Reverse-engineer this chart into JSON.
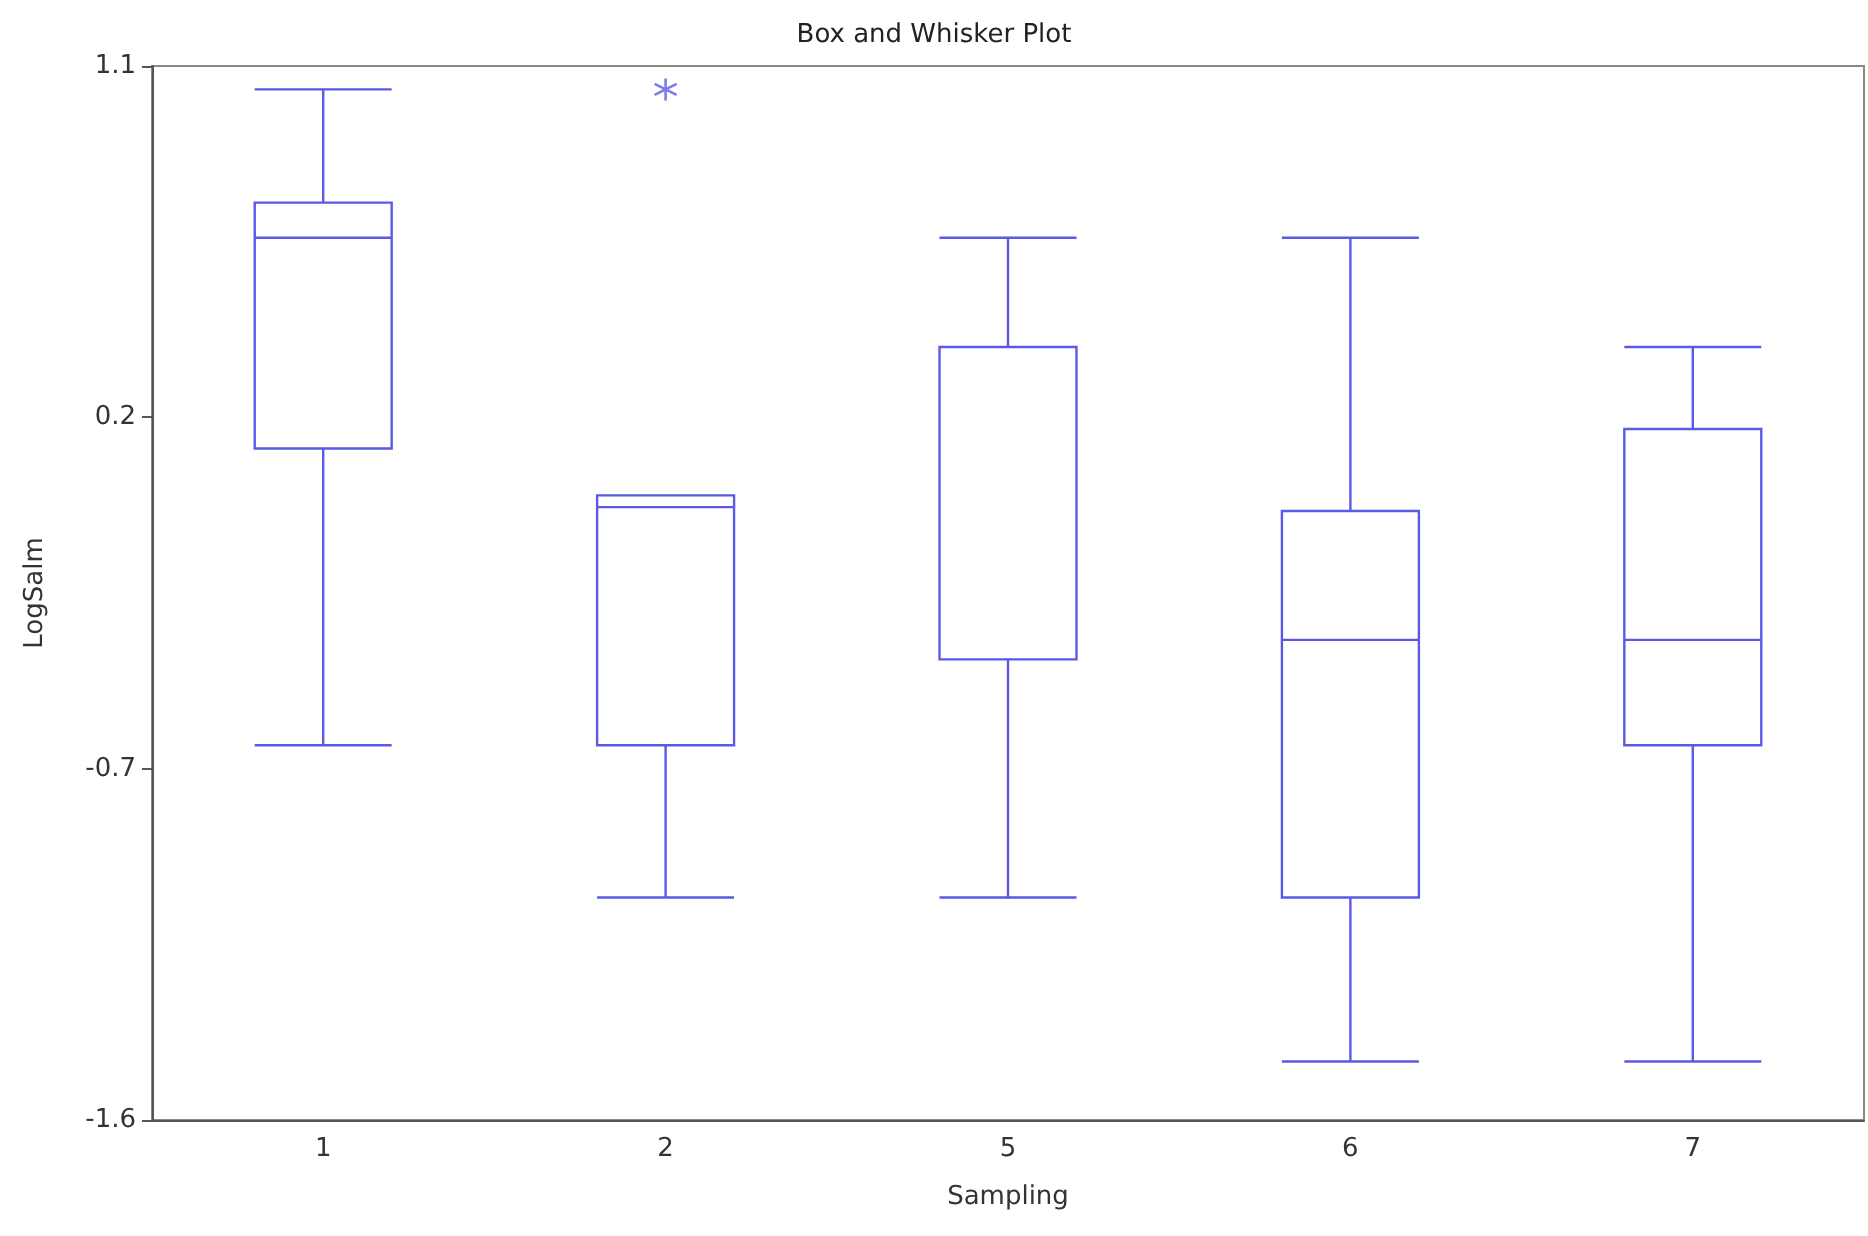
{
  "chart_data": {
    "type": "box",
    "title": "Box and Whisker Plot",
    "xlabel": "Sampling",
    "ylabel": "LogSalm",
    "categories": [
      "1",
      "2",
      "5",
      "6",
      "7"
    ],
    "boxes": [
      {
        "low": -0.64,
        "q1": 0.12,
        "median": 0.66,
        "q3": 0.75,
        "high": 1.04
      },
      {
        "low": -1.03,
        "q1": -0.64,
        "median": -0.03,
        "q3": 0.0,
        "high": 0.0,
        "outliers": [
          1.04
        ]
      },
      {
        "low": -1.03,
        "q1": -0.42,
        "median": 0.38,
        "q3": 0.38,
        "high": 0.66
      },
      {
        "low": -1.45,
        "q1": -1.03,
        "median": -0.37,
        "q3": -0.04,
        "high": 0.66
      },
      {
        "low": -1.45,
        "q1": -0.64,
        "median": -0.37,
        "q3": 0.17,
        "high": 0.38
      }
    ],
    "color": "#5a5ae6",
    "marker": "star",
    "ylim": [
      -1.6,
      1.1
    ],
    "yticks": [
      -1.6,
      -0.7,
      0.2,
      1.1
    ],
    "grid": false
  }
}
